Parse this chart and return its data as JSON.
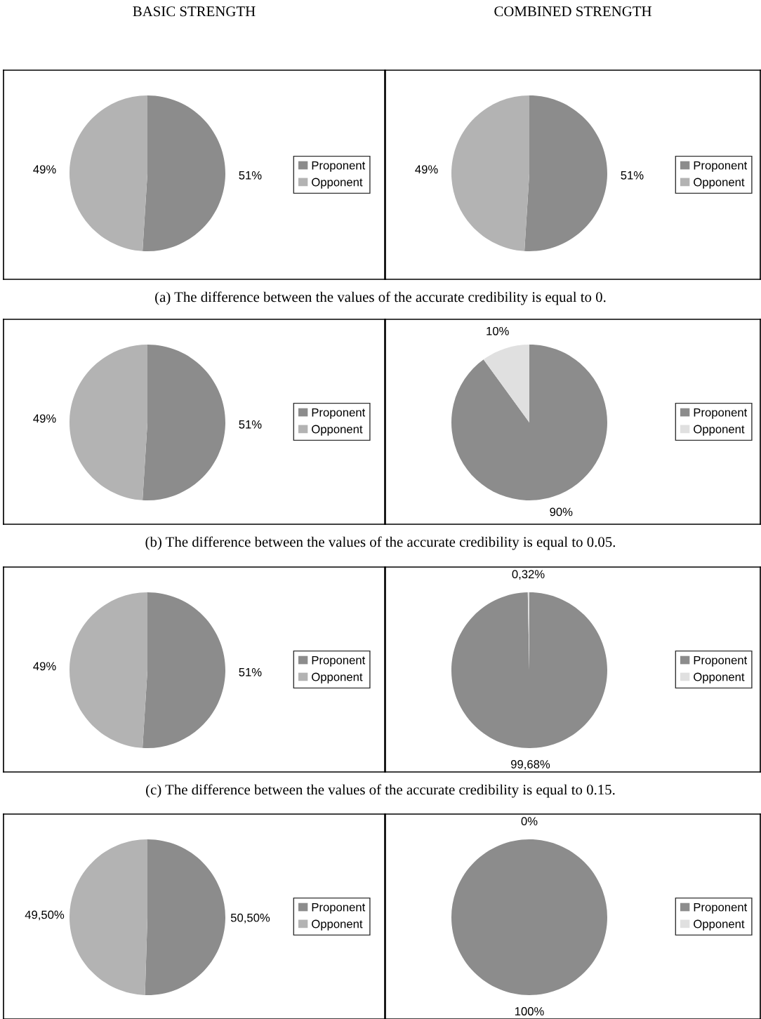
{
  "chart_data": [
    {
      "type": "pie",
      "title": "BASIC STRENGTH",
      "categories": [
        "Proponent",
        "Opponent"
      ],
      "values": [
        51,
        49
      ],
      "value_labels": [
        "51%",
        "49%"
      ],
      "colors": [
        "#8c8c8c",
        "#b3b3b3"
      ],
      "legend": "right",
      "annotations": [
        "(a) The difference between the values of the accurate credibility is equal to 0."
      ]
    },
    {
      "type": "pie",
      "title": "COMBINED STRENGTH",
      "categories": [
        "Proponent",
        "Opponent"
      ],
      "values": [
        51,
        49
      ],
      "value_labels": [
        "51%",
        "49%"
      ],
      "colors": [
        "#8c8c8c",
        "#b3b3b3"
      ],
      "legend": "right"
    },
    {
      "type": "pie",
      "categories": [
        "Proponent",
        "Opponent"
      ],
      "values": [
        51,
        49
      ],
      "value_labels": [
        "51%",
        "49%"
      ],
      "colors": [
        "#8c8c8c",
        "#b3b3b3"
      ],
      "legend": "right",
      "annotations": [
        "(b) The difference between the values of the accurate credibility is equal to 0.05."
      ]
    },
    {
      "type": "pie",
      "categories": [
        "Proponent",
        "Opponent"
      ],
      "values": [
        90,
        10
      ],
      "value_labels": [
        "90%",
        "10%"
      ],
      "colors": [
        "#8c8c8c",
        "#e0e0e0"
      ],
      "legend": "right"
    },
    {
      "type": "pie",
      "categories": [
        "Proponent",
        "Opponent"
      ],
      "values": [
        51,
        49
      ],
      "value_labels": [
        "51%",
        "49%"
      ],
      "colors": [
        "#8c8c8c",
        "#b3b3b3"
      ],
      "legend": "right",
      "annotations": [
        "(c) The difference between the values of the accurate credibility is equal to 0.15."
      ]
    },
    {
      "type": "pie",
      "categories": [
        "Proponent",
        "Opponent"
      ],
      "values": [
        99.68,
        0.32
      ],
      "value_labels": [
        "99,68%",
        "0,32%"
      ],
      "colors": [
        "#8c8c8c",
        "#e0e0e0"
      ],
      "legend": "right"
    },
    {
      "type": "pie",
      "categories": [
        "Proponent",
        "Opponent"
      ],
      "values": [
        50.5,
        49.5
      ],
      "value_labels": [
        "50,50%",
        "49,50%"
      ],
      "colors": [
        "#8c8c8c",
        "#b3b3b3"
      ],
      "legend": "right"
    },
    {
      "type": "pie",
      "categories": [
        "Proponent",
        "Opponent"
      ],
      "values": [
        100,
        0
      ],
      "value_labels": [
        "100%",
        "0%"
      ],
      "colors": [
        "#8c8c8c",
        "#e0e0e0"
      ],
      "legend": "right"
    }
  ]
}
